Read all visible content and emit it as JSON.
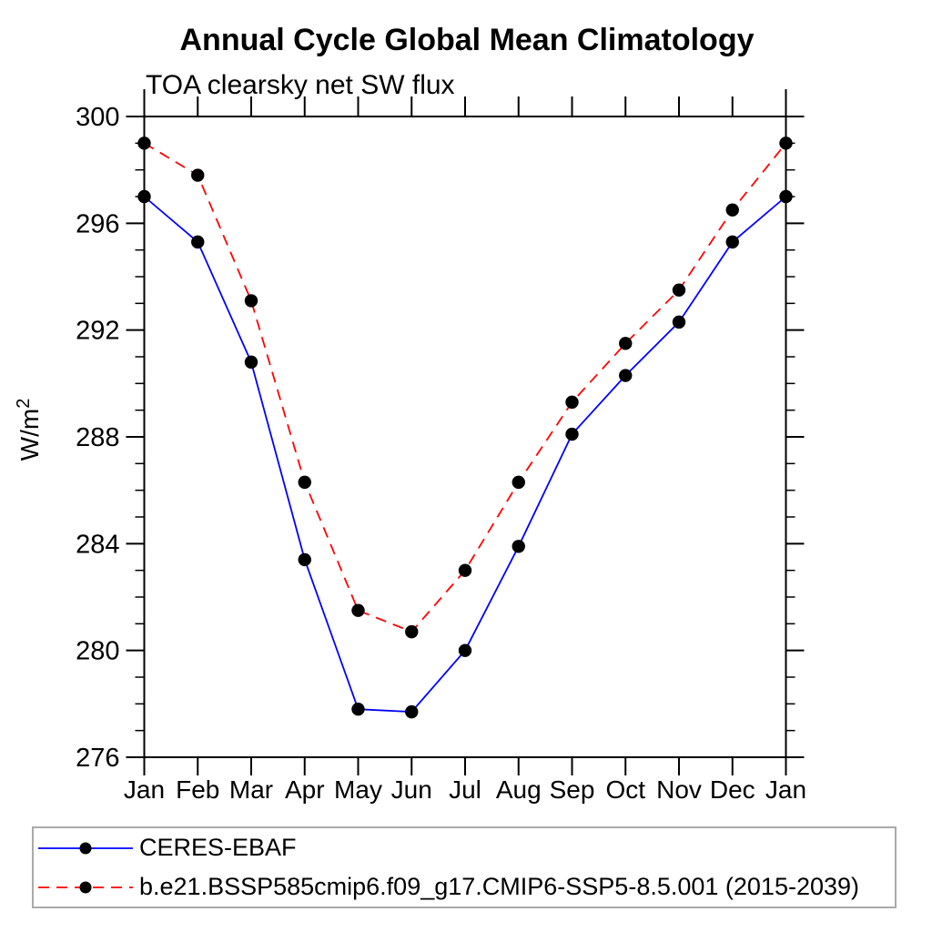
{
  "title": "Annual Cycle Global Mean Climatology",
  "subtitle": "TOA clearsky net SW flux",
  "y_axis": {
    "unit_base": "W/m",
    "unit_exponent": "2",
    "tick_labels": [
      "300",
      "296",
      "292",
      "288",
      "284",
      "280",
      "276"
    ]
  },
  "x_axis": {
    "labels": [
      "Jan",
      "Feb",
      "Mar",
      "Apr",
      "May",
      "Jun",
      "Jul",
      "Aug",
      "Sep",
      "Oct",
      "Nov",
      "Dec",
      "Jan"
    ]
  },
  "legend": [
    {
      "label": "CERES-EBAF",
      "color": "#0000ff",
      "style": "solid",
      "marker": "black-circle"
    },
    {
      "label": "b.e21.BSSP585cmip6.f09_g17.CMIP6-SSP5-8.5.001 (2015-2039)",
      "color": "#ff0000",
      "style": "dashed",
      "marker": "black-circle"
    }
  ],
  "chart_data": {
    "type": "line",
    "x": [
      "Jan",
      "Feb",
      "Mar",
      "Apr",
      "May",
      "Jun",
      "Jul",
      "Aug",
      "Sep",
      "Oct",
      "Nov",
      "Dec",
      "Jan"
    ],
    "ylim": [
      276,
      300
    ],
    "y_major_step": 4,
    "y_minor_step": 1,
    "grid": false,
    "legend_position": "bottom",
    "marker_color": "#000000",
    "series": [
      {
        "name": "CERES-EBAF",
        "color": "#0000ff",
        "line_style": "solid",
        "marker": "black-circle",
        "values": [
          297.0,
          295.3,
          290.8,
          283.4,
          277.8,
          277.7,
          280.0,
          283.9,
          288.1,
          290.3,
          292.3,
          295.3,
          297.0
        ]
      },
      {
        "name": "b.e21.BSSP585cmip6.f09_g17.CMIP6-SSP5-8.5.001 (2015-2039)",
        "color": "#ff0000",
        "line_style": "dashed",
        "marker": "black-circle",
        "values": [
          299.0,
          297.8,
          293.1,
          286.3,
          281.5,
          280.7,
          283.0,
          286.3,
          289.3,
          291.5,
          293.5,
          296.5,
          299.0
        ]
      }
    ]
  }
}
